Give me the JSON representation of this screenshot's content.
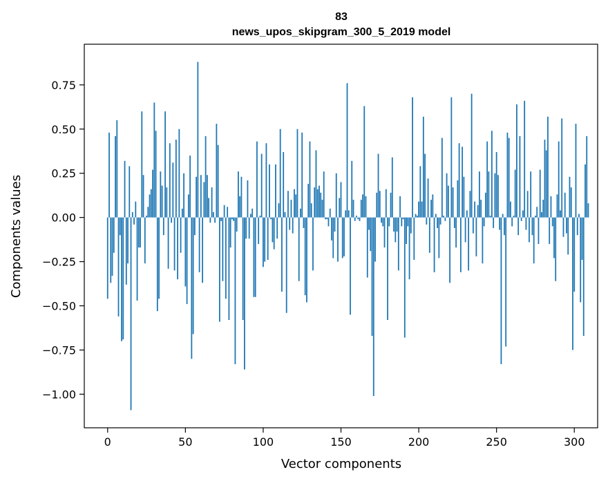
{
  "chart_data": {
    "type": "bar",
    "title": "83",
    "subtitle": "news_upos_skipgram_300_5_2019 model",
    "xlabel": "Vector components",
    "ylabel": "Components values",
    "xlim": [
      -15,
      315
    ],
    "ylim": [
      -1.19,
      0.98
    ],
    "xticks": [
      0,
      50,
      100,
      150,
      200,
      250,
      300
    ],
    "yticks": [
      -1.0,
      -0.75,
      -0.5,
      -0.25,
      0.0,
      0.25,
      0.5,
      0.75
    ],
    "xtick_labels": [
      "0",
      "50",
      "100",
      "150",
      "200",
      "250",
      "300"
    ],
    "ytick_labels": [
      "−1.00",
      "−0.75",
      "−0.50",
      "−0.25",
      "0.00",
      "0.25",
      "0.50",
      "0.75"
    ],
    "bar_color": "#1f77b4",
    "values": [
      -0.46,
      0.48,
      -0.37,
      -0.33,
      -0.2,
      0.46,
      0.55,
      -0.56,
      -0.1,
      -0.7,
      -0.69,
      0.32,
      -0.38,
      -0.26,
      0.29,
      -1.09,
      0.03,
      -0.04,
      0.09,
      -0.47,
      -0.17,
      -0.17,
      0.6,
      0.24,
      -0.26,
      0.01,
      0.06,
      0.13,
      0.16,
      0.27,
      0.65,
      0.49,
      -0.53,
      -0.46,
      0.26,
      0.18,
      -0.1,
      0.6,
      0.17,
      -0.29,
      0.42,
      -0.03,
      0.31,
      -0.3,
      0.44,
      -0.35,
      0.5,
      -0.2,
      0.05,
      0.25,
      -0.39,
      -0.49,
      0.13,
      0.35,
      -0.8,
      -0.66,
      -0.1,
      0.23,
      0.88,
      -0.31,
      0.24,
      -0.37,
      0.2,
      0.46,
      0.24,
      0.11,
      -0.03,
      0.17,
      0.03,
      -0.03,
      0.53,
      0.41,
      -0.59,
      -0.02,
      -0.36,
      0.07,
      -0.46,
      0.06,
      -0.58,
      -0.17,
      -0.01,
      -0.02,
      -0.83,
      -0.08,
      0.26,
      0.12,
      0.23,
      -0.58,
      -0.86,
      -0.12,
      0.21,
      -0.12,
      0.02,
      0.05,
      -0.45,
      -0.45,
      0.43,
      -0.15,
      0.01,
      0.36,
      -0.28,
      -0.25,
      0.42,
      -0.24,
      0.3,
      -0.01,
      -0.14,
      -0.18,
      0.3,
      -0.12,
      0.08,
      0.5,
      -0.42,
      0.37,
      0.03,
      -0.54,
      0.15,
      -0.07,
      0.1,
      -0.09,
      0.16,
      0.13,
      0.5,
      -0.36,
      0.05,
      0.48,
      -0.06,
      -0.44,
      -0.48,
      0.19,
      0.43,
      0.08,
      -0.3,
      0.17,
      0.38,
      0.16,
      0.18,
      0.14,
      0.1,
      0.26,
      -0.01,
      -0.01,
      -0.05,
      0.05,
      -0.13,
      -0.23,
      -0.08,
      0.25,
      -0.25,
      0.11,
      0.2,
      -0.23,
      -0.22,
      0.04,
      0.76,
      0.04,
      -0.55,
      0.32,
      0.1,
      -0.02,
      0.01,
      -0.01,
      -0.02,
      0.1,
      0.13,
      0.63,
      0.12,
      -0.34,
      -0.07,
      -0.19,
      -0.67,
      -1.01,
      -0.25,
      0.14,
      0.36,
      0.15,
      -0.03,
      -0.05,
      -0.17,
      0.16,
      -0.58,
      -0.05,
      0.14,
      0.34,
      -0.08,
      -0.14,
      -0.08,
      -0.3,
      0.12,
      -0.05,
      -0.01,
      -0.68,
      -0.15,
      -0.05,
      -0.35,
      -0.09,
      0.68,
      -0.24,
      0.02,
      0.01,
      0.09,
      0.29,
      0.09,
      0.57,
      0.36,
      -0.04,
      0.22,
      -0.2,
      0.1,
      0.13,
      -0.31,
      0.02,
      -0.06,
      -0.23,
      -0.04,
      0.45,
      0.01,
      -0.02,
      0.25,
      0.18,
      -0.37,
      0.68,
      0.17,
      -0.06,
      -0.17,
      0.21,
      0.42,
      -0.31,
      0.4,
      0.23,
      -0.14,
      0.04,
      -0.3,
      0.15,
      0.7,
      -0.09,
      0.09,
      -0.22,
      0.07,
      0.26,
      0.1,
      -0.26,
      -0.05,
      0.14,
      0.43,
      0.26,
      0.01,
      0.49,
      -0.06,
      0.25,
      0.37,
      0.24,
      -0.07,
      -0.83,
      0.02,
      -0.1,
      -0.73,
      0.48,
      0.45,
      0.09,
      -0.05,
      0.01,
      0.27,
      0.64,
      -0.1,
      0.46,
      -0.02,
      0.04,
      0.66,
      -0.07,
      0.15,
      -0.14,
      0.26,
      -0.1,
      -0.26,
      0.01,
      0.06,
      -0.15,
      0.27,
      0.03,
      0.1,
      0.44,
      0.38,
      0.57,
      -0.15,
      0.12,
      -0.05,
      -0.23,
      -0.36,
      0.13,
      0.43,
      0.04,
      0.56,
      -0.11,
      0.14,
      -0.09,
      -0.21,
      0.23,
      0.17,
      -0.75,
      -0.42,
      0.53,
      -0.1,
      0.02,
      -0.48,
      -0.24,
      -0.67,
      0.3,
      0.46,
      0.08
    ]
  }
}
